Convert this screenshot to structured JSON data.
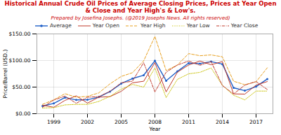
{
  "chart_data": {
    "type": "line",
    "title": "Historical Annual Crude Oil Prices of Average Closing Prices, Prices at Year Open & Close and Year High's & Low's.",
    "title_color": "#cc0000",
    "subtitle": "Prepared by Josefina Josephs.  (@2019 Josephs News. All rights reserved)",
    "subtitle_color": "#cc0000",
    "xlabel": "Year",
    "ylabel": "Price/Barrel (USD.)",
    "x": [
      1998,
      1999,
      2000,
      2001,
      2002,
      2003,
      2004,
      2005,
      2006,
      2007,
      2008,
      2009,
      2010,
      2011,
      2012,
      2013,
      2014,
      2015,
      2016,
      2017,
      2018
    ],
    "series": [
      {
        "name": "Average",
        "color": "#1f5fc8",
        "line_style": "solid",
        "marker": "circle",
        "values": [
          14.4,
          19.3,
          30.4,
          25.9,
          26.2,
          31.1,
          41.5,
          56.6,
          66.1,
          72.3,
          99.6,
          61.9,
          79.5,
          95.1,
          94.2,
          97.9,
          93.2,
          48.7,
          43.3,
          50.9,
          65.2
        ]
      },
      {
        "name": "Year Open",
        "color": "#c0392b",
        "line_style": "solid",
        "values": [
          16.0,
          12.0,
          25.0,
          33.5,
          19.8,
          31.0,
          32.0,
          42.0,
          58.0,
          61.0,
          96.0,
          41.0,
          78.0,
          91.5,
          99.0,
          92.0,
          98.0,
          37.2,
          36.8,
          53.7,
          60.4
        ]
      },
      {
        "name": "Year High",
        "color": "#e8a020",
        "line_style": "dashed",
        "values": [
          17.5,
          26.0,
          37.5,
          31.0,
          32.5,
          39.0,
          56.0,
          70.0,
          77.0,
          99.3,
          145.3,
          81.0,
          91.5,
          113.0,
          109.0,
          110.5,
          107.0,
          61.0,
          54.5,
          60.0,
          86.3
        ]
      },
      {
        "name": "Year Low",
        "color": "#c8c000",
        "line_style": "dotted",
        "values": [
          10.7,
          11.3,
          16.5,
          17.5,
          17.5,
          23.0,
          32.5,
          46.0,
          55.0,
          50.0,
          86.0,
          30.3,
          64.5,
          75.0,
          77.7,
          86.0,
          53.5,
          34.6,
          26.0,
          42.5,
          42.5
        ]
      },
      {
        "name": "Year Close",
        "color": "#c0392b",
        "line_style": "dashdot",
        "values": [
          12.0,
          25.6,
          33.0,
          19.5,
          31.0,
          32.0,
          42.0,
          58.0,
          61.0,
          96.0,
          41.0,
          78.0,
          91.5,
          99.0,
          91.0,
          98.0,
          53.0,
          37.0,
          53.7,
          60.4,
          45.4
        ]
      }
    ],
    "xlim": [
      1997.5,
      2018.5
    ],
    "xticks": [
      1999,
      2002,
      2005,
      2008,
      2011,
      2014,
      2017
    ],
    "ylim": [
      0,
      150
    ],
    "yticks": [
      {
        "value": 0,
        "label": "$0.00"
      },
      {
        "value": 50,
        "label": "$50.00"
      },
      {
        "value": 100,
        "label": "$100.00"
      },
      {
        "value": 150,
        "label": "$150.00"
      }
    ],
    "grid": true,
    "legend": "top"
  }
}
